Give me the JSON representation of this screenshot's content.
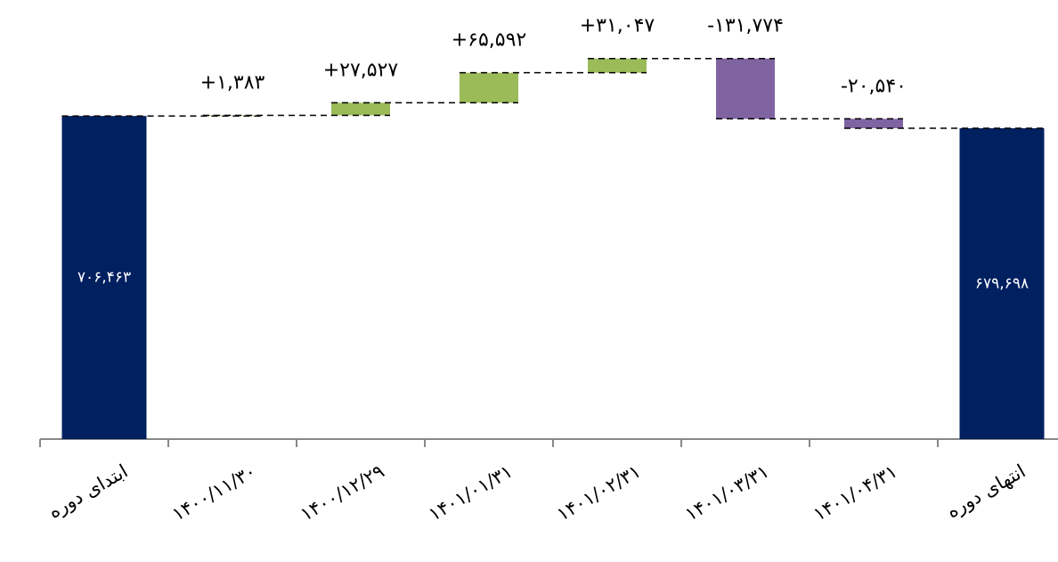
{
  "chart_data": {
    "type": "waterfall",
    "categories": [
      "ابتدای دوره",
      "۱۴۰۰/۱۱/۳۰",
      "۱۴۰۰/۱۲/۲۹",
      "۱۴۰۱/۰۱/۳۱",
      "۱۴۰۱/۰۲/۳۱",
      "۱۴۰۱/۰۳/۳۱",
      "۱۴۰۱/۰۴/۳۱",
      "انتهای دوره"
    ],
    "values": [
      706463,
      1383,
      27527,
      65592,
      31047,
      -131774,
      -20540,
      679698
    ],
    "value_labels": [
      "۷۰۶,۴۶۳",
      "+۱,۳۸۳",
      "+۲۷,۵۲۷",
      "+۶۵,۵۹۲",
      "+۳۱,۰۴۷",
      "-۱۳۱,۷۷۴",
      "-۲۰,۵۴۰",
      "۶۷۹,۶۹۸"
    ],
    "colors": {
      "total": "#002060",
      "increase": "#9bbb59",
      "decrease": "#8064a2"
    },
    "ylim": [
      0,
      960000
    ]
  }
}
